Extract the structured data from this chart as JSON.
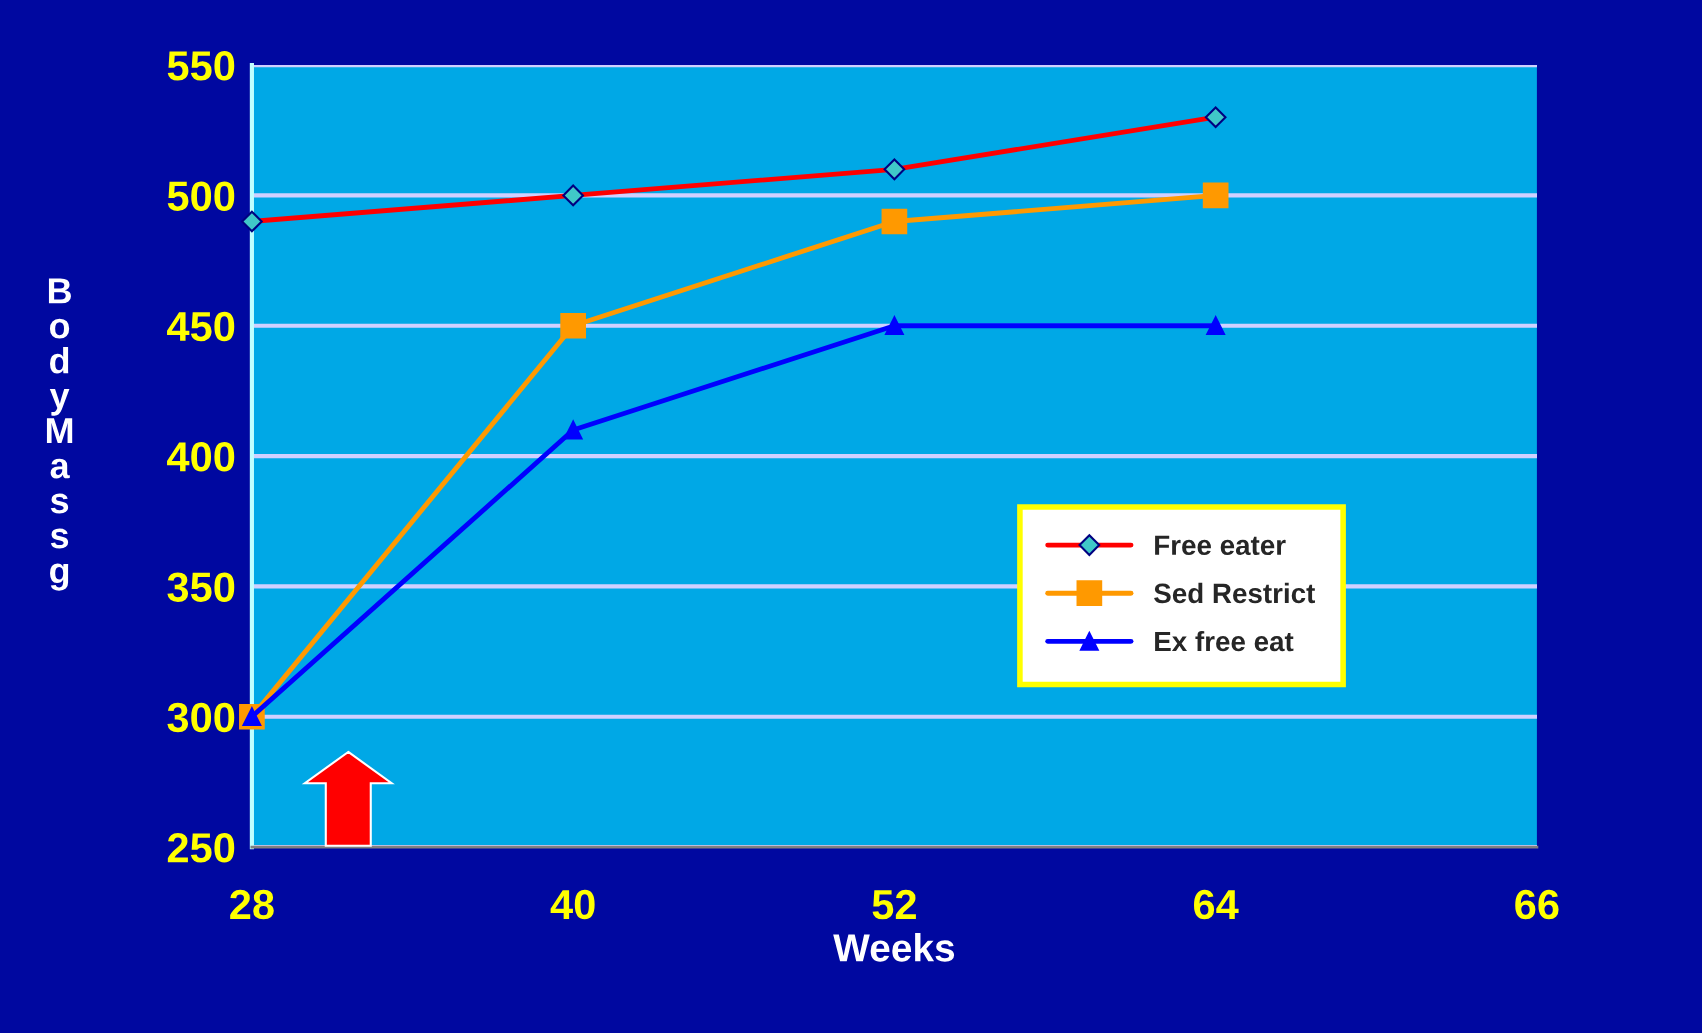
{
  "chart_data": {
    "type": "line",
    "xlabel": "Weeks",
    "ylabel": "Body Mass g",
    "categories": [
      "28",
      "40",
      "52",
      "64",
      "66"
    ],
    "series": [
      {
        "name": "Free eater",
        "color": "#ff0000",
        "marker": "diamond",
        "values": [
          490,
          500,
          510,
          530,
          null
        ]
      },
      {
        "name": "Sed Restrict",
        "color": "#ff9900",
        "marker": "square",
        "values": [
          300,
          450,
          490,
          500,
          null
        ]
      },
      {
        "name": "Ex free eat",
        "color": "#0000ff",
        "marker": "triangle",
        "values": [
          300,
          410,
          450,
          450,
          null
        ]
      }
    ],
    "ylim": [
      250,
      550
    ],
    "yticks": [
      250,
      300,
      350,
      400,
      450,
      500,
      550
    ],
    "grid": "y",
    "legend": "bottom right"
  }
}
